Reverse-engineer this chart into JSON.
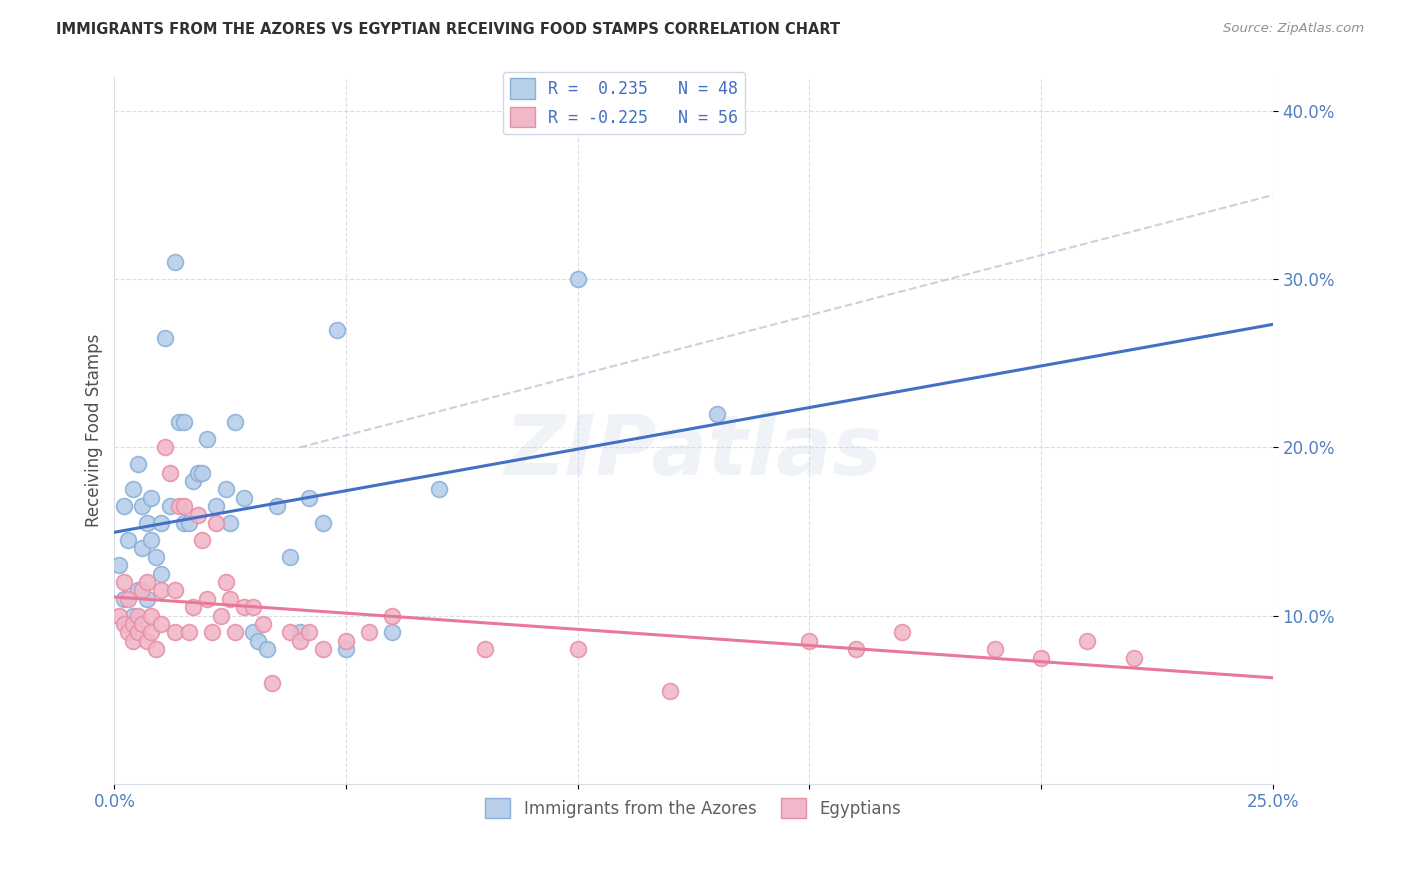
{
  "title": "IMMIGRANTS FROM THE AZORES VS EGYPTIAN RECEIVING FOOD STAMPS CORRELATION CHART",
  "source": "Source: ZipAtlas.com",
  "ylabel": "Receiving Food Stamps",
  "xlim": [
    0.0,
    0.25
  ],
  "ylim": [
    0.0,
    0.42
  ],
  "yticks": [
    0.1,
    0.2,
    0.3,
    0.4
  ],
  "xticks": [
    0.0,
    0.05,
    0.1,
    0.15,
    0.2,
    0.25
  ],
  "watermark": "ZIPatlas",
  "legend_entry1": "R =  0.235   N = 48",
  "legend_entry2": "R = -0.225   N = 56",
  "legend_label1": "Immigrants from the Azores",
  "legend_label2": "Egyptians",
  "blue_scatter_face": "#b8d0ea",
  "blue_scatter_edge": "#8ab0d8",
  "pink_scatter_face": "#f0b8c8",
  "pink_scatter_edge": "#e890a8",
  "blue_line_color": "#4470c4",
  "pink_line_color": "#e87898",
  "dashed_line_color": "#b8c8d8",
  "title_color": "#303030",
  "source_color": "#909090",
  "tick_color": "#5080c0",
  "ylabel_color": "#505050",
  "grid_color": "#d8dde8",
  "legend_text_color": "#4470c4",
  "bottom_legend_color": "#606060",
  "azores_x": [
    0.001,
    0.002,
    0.002,
    0.003,
    0.003,
    0.004,
    0.004,
    0.005,
    0.005,
    0.006,
    0.006,
    0.007,
    0.007,
    0.008,
    0.008,
    0.009,
    0.01,
    0.01,
    0.011,
    0.012,
    0.013,
    0.014,
    0.015,
    0.015,
    0.016,
    0.017,
    0.018,
    0.019,
    0.02,
    0.022,
    0.024,
    0.025,
    0.026,
    0.028,
    0.03,
    0.031,
    0.033,
    0.035,
    0.038,
    0.04,
    0.042,
    0.045,
    0.048,
    0.05,
    0.06,
    0.07,
    0.1,
    0.13
  ],
  "azores_y": [
    0.13,
    0.165,
    0.11,
    0.145,
    0.095,
    0.175,
    0.1,
    0.19,
    0.115,
    0.165,
    0.14,
    0.155,
    0.11,
    0.17,
    0.145,
    0.135,
    0.155,
    0.125,
    0.265,
    0.165,
    0.31,
    0.215,
    0.155,
    0.215,
    0.155,
    0.18,
    0.185,
    0.185,
    0.205,
    0.165,
    0.175,
    0.155,
    0.215,
    0.17,
    0.09,
    0.085,
    0.08,
    0.165,
    0.135,
    0.09,
    0.17,
    0.155,
    0.27,
    0.08,
    0.09,
    0.175,
    0.3,
    0.22
  ],
  "egyptian_x": [
    0.001,
    0.002,
    0.002,
    0.003,
    0.003,
    0.004,
    0.004,
    0.005,
    0.005,
    0.006,
    0.006,
    0.007,
    0.007,
    0.008,
    0.008,
    0.009,
    0.01,
    0.01,
    0.011,
    0.012,
    0.013,
    0.013,
    0.014,
    0.015,
    0.016,
    0.017,
    0.018,
    0.019,
    0.02,
    0.021,
    0.022,
    0.023,
    0.024,
    0.025,
    0.026,
    0.028,
    0.03,
    0.032,
    0.034,
    0.038,
    0.04,
    0.042,
    0.045,
    0.05,
    0.055,
    0.06,
    0.08,
    0.1,
    0.12,
    0.15,
    0.16,
    0.17,
    0.19,
    0.2,
    0.21,
    0.22
  ],
  "egyptian_y": [
    0.1,
    0.12,
    0.095,
    0.11,
    0.09,
    0.095,
    0.085,
    0.1,
    0.09,
    0.115,
    0.095,
    0.12,
    0.085,
    0.1,
    0.09,
    0.08,
    0.115,
    0.095,
    0.2,
    0.185,
    0.115,
    0.09,
    0.165,
    0.165,
    0.09,
    0.105,
    0.16,
    0.145,
    0.11,
    0.09,
    0.155,
    0.1,
    0.12,
    0.11,
    0.09,
    0.105,
    0.105,
    0.095,
    0.06,
    0.09,
    0.085,
    0.09,
    0.08,
    0.085,
    0.09,
    0.1,
    0.08,
    0.08,
    0.055,
    0.085,
    0.08,
    0.09,
    0.08,
    0.075,
    0.085,
    0.075
  ]
}
